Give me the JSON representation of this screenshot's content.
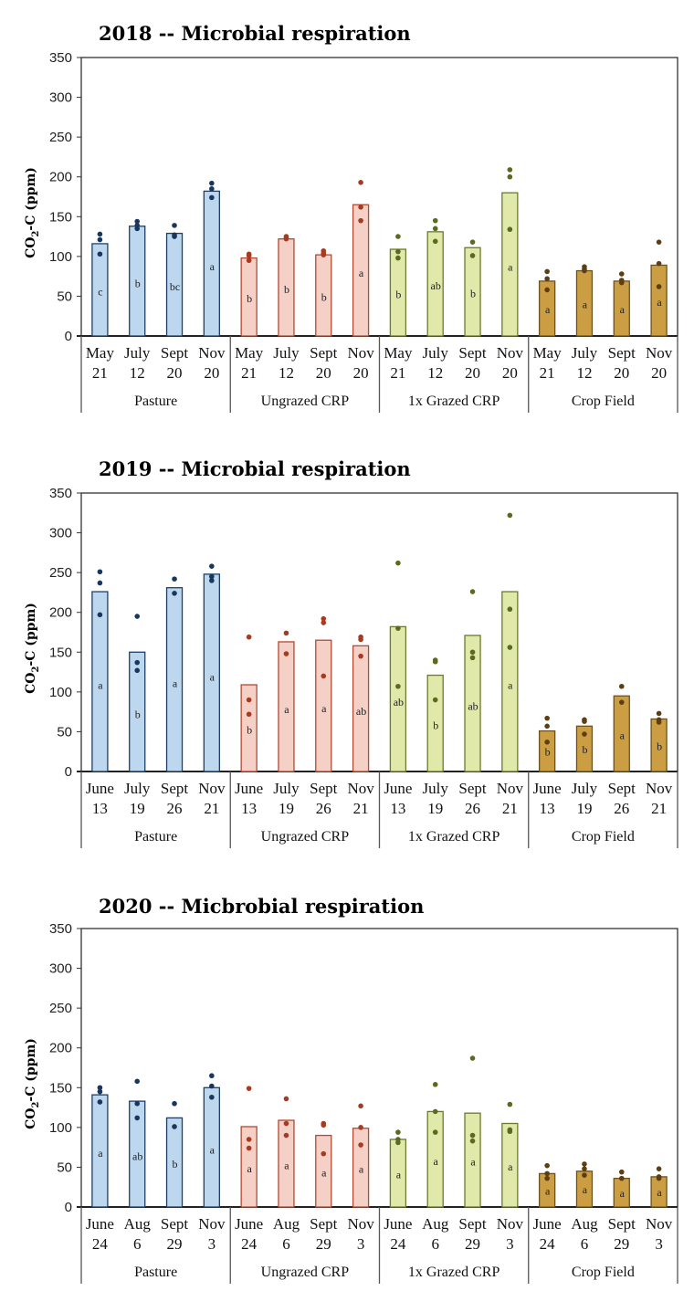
{
  "chart_data": [
    {
      "type": "bar",
      "title": "2018 -- Microbial respiration",
      "ylabel": "CO2-C (ppm)",
      "ylim": [
        0,
        350
      ],
      "yticks": [
        0,
        50,
        100,
        150,
        200,
        250,
        300,
        350
      ],
      "groups": [
        {
          "name": "Pasture",
          "color_fill": "#bdd7ee",
          "color_stroke": "#1f3f66",
          "dot_color": "#17375e",
          "bars": [
            {
              "month": "May",
              "day": "21",
              "value": 116,
              "letter": "c",
              "points": [
                128,
                121,
                103
              ]
            },
            {
              "month": "July",
              "day": "12",
              "value": 138,
              "letter": "b",
              "points": [
                144,
                139,
                135
              ]
            },
            {
              "month": "Sept",
              "day": "20",
              "value": 129,
              "letter": "bc",
              "points": [
                139,
                127,
                125
              ]
            },
            {
              "month": "Nov",
              "day": "20",
              "value": 182,
              "letter": "a",
              "points": [
                192,
                185,
                174
              ]
            }
          ]
        },
        {
          "name": "Ungrazed CRP",
          "color_fill": "#f4d0c6",
          "color_stroke": "#b24a32",
          "dot_color": "#a93a22",
          "bars": [
            {
              "month": "May",
              "day": "21",
              "value": 98,
              "letter": "b",
              "points": [
                103,
                101,
                95
              ]
            },
            {
              "month": "July",
              "day": "12",
              "value": 122,
              "letter": "b",
              "points": [
                125,
                123,
                122
              ]
            },
            {
              "month": "Sept",
              "day": "20",
              "value": 102,
              "letter": "b",
              "points": [
                107,
                104,
                102
              ]
            },
            {
              "month": "Nov",
              "day": "20",
              "value": 165,
              "letter": "a",
              "points": [
                193,
                162,
                145
              ]
            }
          ]
        },
        {
          "name": "1x Grazed CRP",
          "color_fill": "#e0e8aa",
          "color_stroke": "#6b7a2c",
          "dot_color": "#5a6a1e",
          "bars": [
            {
              "month": "May",
              "day": "21",
              "value": 109,
              "letter": "b",
              "points": [
                125,
                106,
                98
              ]
            },
            {
              "month": "July",
              "day": "12",
              "value": 131,
              "letter": "ab",
              "points": [
                145,
                135,
                119
              ]
            },
            {
              "month": "Sept",
              "day": "20",
              "value": 111,
              "letter": "b",
              "points": [
                118,
                101
              ]
            },
            {
              "month": "Nov",
              "day": "20",
              "value": 180,
              "letter": "a",
              "points": [
                209,
                200,
                134
              ]
            }
          ]
        },
        {
          "name": "Crop Field",
          "color_fill": "#cc9e44",
          "color_stroke": "#6b5220",
          "dot_color": "#5c3e12",
          "bars": [
            {
              "month": "May",
              "day": "21",
              "value": 69,
              "letter": "a",
              "points": [
                81,
                72,
                58
              ]
            },
            {
              "month": "July",
              "day": "12",
              "value": 82,
              "letter": "a",
              "points": [
                87,
                84,
                82
              ]
            },
            {
              "month": "Sept",
              "day": "20",
              "value": 69,
              "letter": "a",
              "points": [
                78,
                70,
                67
              ]
            },
            {
              "month": "Nov",
              "day": "20",
              "value": 89,
              "letter": "a",
              "points": [
                118,
                91,
                62
              ]
            }
          ]
        }
      ]
    },
    {
      "type": "bar",
      "title": "2019 -- Microbial respiration",
      "ylabel": "CO2-C (ppm)",
      "ylim": [
        0,
        350
      ],
      "yticks": [
        0,
        50,
        100,
        150,
        200,
        250,
        300,
        350
      ],
      "groups": [
        {
          "name": "Pasture",
          "color_fill": "#bdd7ee",
          "color_stroke": "#1f3f66",
          "dot_color": "#17375e",
          "bars": [
            {
              "month": "June",
              "day": "13",
              "value": 226,
              "letter": "a",
              "points": [
                251,
                237,
                197
              ]
            },
            {
              "month": "July",
              "day": "19",
              "value": 150,
              "letter": "b",
              "points": [
                195,
                137,
                127
              ]
            },
            {
              "month": "Sept",
              "day": "26",
              "value": 231,
              "letter": "a",
              "points": [
                242,
                224
              ]
            },
            {
              "month": "Nov",
              "day": "21",
              "value": 248,
              "letter": "a",
              "points": [
                258,
                245,
                240
              ]
            }
          ]
        },
        {
          "name": "Ungrazed CRP",
          "color_fill": "#f4d0c6",
          "color_stroke": "#b24a32",
          "dot_color": "#a93a22",
          "bars": [
            {
              "month": "June",
              "day": "13",
              "value": 109,
              "letter": "b",
              "points": [
                169,
                90,
                72
              ]
            },
            {
              "month": "July",
              "day": "19",
              "value": 163,
              "letter": "a",
              "points": [
                174,
                148
              ]
            },
            {
              "month": "Sept",
              "day": "26",
              "value": 165,
              "letter": "a",
              "points": [
                192,
                187,
                120
              ]
            },
            {
              "month": "Nov",
              "day": "21",
              "value": 158,
              "letter": "ab",
              "points": [
                169,
                166,
                145
              ]
            }
          ]
        },
        {
          "name": "1x Grazed CRP",
          "color_fill": "#e0e8aa",
          "color_stroke": "#6b7a2c",
          "dot_color": "#5a6a1e",
          "bars": [
            {
              "month": "June",
              "day": "13",
              "value": 182,
              "letter": "ab",
              "points": [
                262,
                180,
                107
              ]
            },
            {
              "month": "July",
              "day": "19",
              "value": 121,
              "letter": "b",
              "points": [
                140,
                138,
                90
              ]
            },
            {
              "month": "Sept",
              "day": "26",
              "value": 171,
              "letter": "ab",
              "points": [
                226,
                150,
                143
              ]
            },
            {
              "month": "Nov",
              "day": "21",
              "value": 226,
              "letter": "a",
              "points": [
                322,
                204,
                156
              ]
            }
          ]
        },
        {
          "name": "Crop Field",
          "color_fill": "#cc9e44",
          "color_stroke": "#6b5220",
          "dot_color": "#5c3e12",
          "bars": [
            {
              "month": "June",
              "day": "13",
              "value": 51,
              "letter": "b",
              "points": [
                67,
                57,
                37
              ]
            },
            {
              "month": "July",
              "day": "19",
              "value": 57,
              "letter": "b",
              "points": [
                65,
                63,
                47
              ]
            },
            {
              "month": "Sept",
              "day": "26",
              "value": 95,
              "letter": "a",
              "points": [
                107,
                87
              ]
            },
            {
              "month": "Nov",
              "day": "21",
              "value": 66,
              "letter": "b",
              "points": [
                73,
                65,
                62
              ]
            }
          ]
        }
      ]
    },
    {
      "type": "bar",
      "title": "2020 -- Micbrobial respiration",
      "ylabel": "CO2-C (ppm)",
      "ylim": [
        0,
        350
      ],
      "yticks": [
        0,
        50,
        100,
        150,
        200,
        250,
        300,
        350
      ],
      "groups": [
        {
          "name": "Pasture",
          "color_fill": "#bdd7ee",
          "color_stroke": "#1f3f66",
          "dot_color": "#17375e",
          "bars": [
            {
              "month": "June",
              "day": "24",
              "value": 141,
              "letter": "a",
              "points": [
                150,
                145,
                132
              ]
            },
            {
              "month": "Aug",
              "day": "6",
              "value": 133,
              "letter": "ab",
              "points": [
                158,
                130,
                112
              ]
            },
            {
              "month": "Sept",
              "day": "29",
              "value": 112,
              "letter": "b",
              "points": [
                130,
                101
              ]
            },
            {
              "month": "Nov",
              "day": "3",
              "value": 150,
              "letter": "a",
              "points": [
                165,
                152,
                138
              ]
            }
          ]
        },
        {
          "name": "Ungrazed CRP",
          "color_fill": "#f4d0c6",
          "color_stroke": "#b24a32",
          "dot_color": "#a93a22",
          "bars": [
            {
              "month": "June",
              "day": "24",
              "value": 101,
              "letter": "a",
              "points": [
                149,
                85,
                74
              ]
            },
            {
              "month": "Aug",
              "day": "6",
              "value": 109,
              "letter": "a",
              "points": [
                136,
                105,
                90
              ]
            },
            {
              "month": "Sept",
              "day": "29",
              "value": 90,
              "letter": "a",
              "points": [
                105,
                103,
                67
              ]
            },
            {
              "month": "Nov",
              "day": "3",
              "value": 99,
              "letter": "a",
              "points": [
                127,
                100,
                78
              ]
            }
          ]
        },
        {
          "name": "1x Grazed CRP",
          "color_fill": "#e0e8aa",
          "color_stroke": "#6b7a2c",
          "dot_color": "#5a6a1e",
          "bars": [
            {
              "month": "June",
              "day": "24",
              "value": 85,
              "letter": "a",
              "points": [
                94,
                85,
                81
              ]
            },
            {
              "month": "Aug",
              "day": "6",
              "value": 120,
              "letter": "a",
              "points": [
                154,
                120,
                94
              ]
            },
            {
              "month": "Sept",
              "day": "29",
              "value": 118,
              "letter": "a",
              "points": [
                187,
                90,
                83
              ]
            },
            {
              "month": "Nov",
              "day": "3",
              "value": 105,
              "letter": "a",
              "points": [
                129,
                97,
                95
              ]
            }
          ]
        },
        {
          "name": "Crop Field",
          "color_fill": "#cc9e44",
          "color_stroke": "#6b5220",
          "dot_color": "#5c3e12",
          "bars": [
            {
              "month": "June",
              "day": "24",
              "value": 42,
              "letter": "a",
              "points": [
                52,
                42,
                36
              ]
            },
            {
              "month": "Aug",
              "day": "6",
              "value": 45,
              "letter": "a",
              "points": [
                54,
                48,
                40
              ]
            },
            {
              "month": "Sept",
              "day": "29",
              "value": 36,
              "letter": "a",
              "points": [
                44,
                36
              ]
            },
            {
              "month": "Nov",
              "day": "3",
              "value": 38,
              "letter": "a",
              "points": [
                48,
                38,
                36
              ]
            }
          ]
        }
      ]
    }
  ]
}
